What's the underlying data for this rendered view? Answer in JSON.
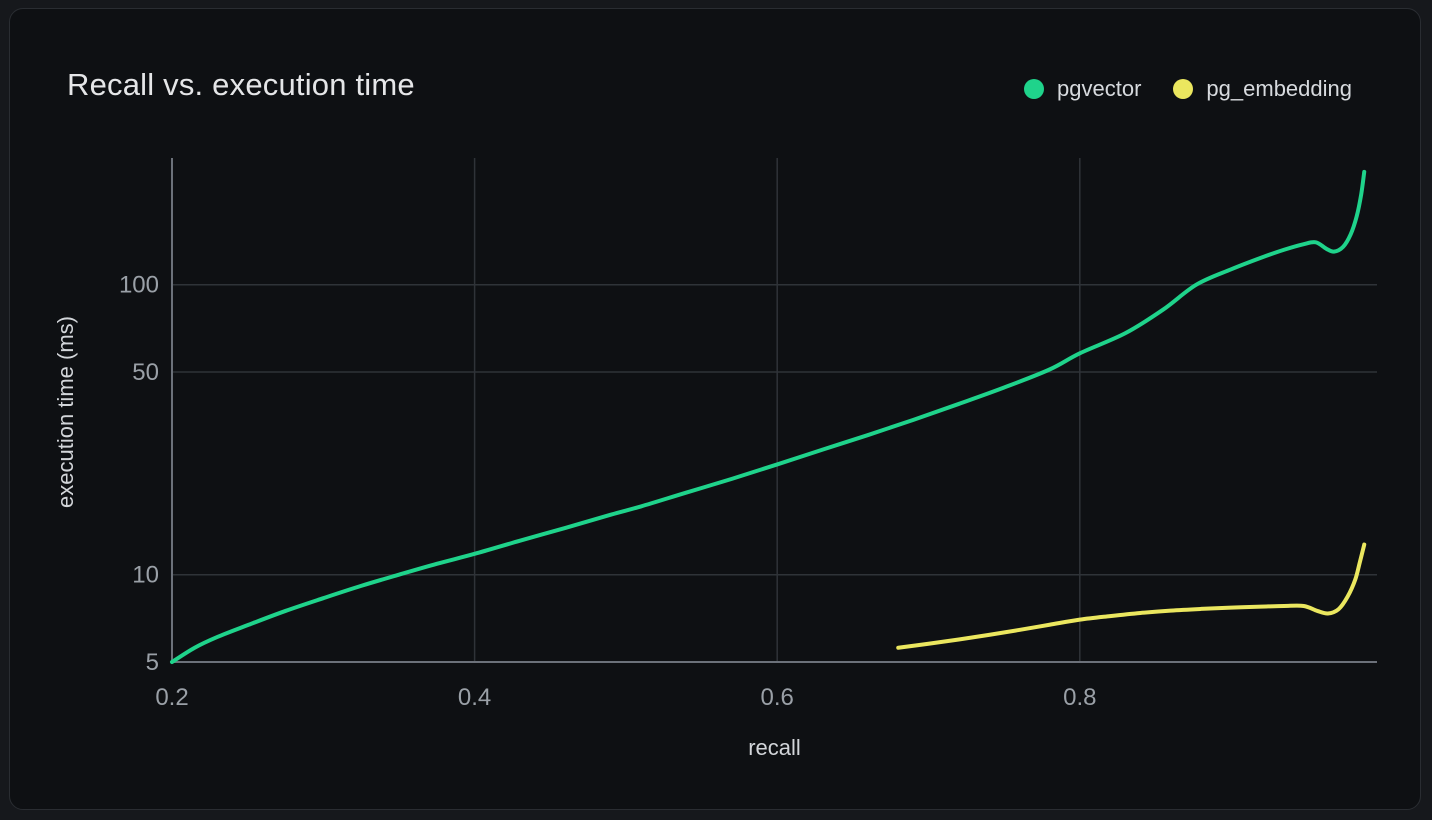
{
  "chart_data": {
    "type": "line",
    "title": "Recall vs. execution time",
    "xlabel": "recall",
    "ylabel": "execution time (ms)",
    "x_scale": "linear",
    "y_scale": "log",
    "xlim": [
      0.2,
      0.997
    ],
    "ylim": [
      5,
      300
    ],
    "x_ticks": [
      0.2,
      0.4,
      0.6,
      0.8
    ],
    "y_ticks": [
      5,
      10,
      50,
      100
    ],
    "grid": true,
    "legend_position": "top-right",
    "series": [
      {
        "name": "pgvector",
        "color": "#1fd38b",
        "points": [
          [
            0.2,
            5.0
          ],
          [
            0.215,
            5.6
          ],
          [
            0.23,
            6.1
          ],
          [
            0.25,
            6.7
          ],
          [
            0.275,
            7.5
          ],
          [
            0.3,
            8.3
          ],
          [
            0.325,
            9.15
          ],
          [
            0.35,
            10.0
          ],
          [
            0.375,
            10.9
          ],
          [
            0.4,
            11.8
          ],
          [
            0.43,
            13.1
          ],
          [
            0.46,
            14.5
          ],
          [
            0.49,
            16.1
          ],
          [
            0.51,
            17.2
          ],
          [
            0.54,
            19.2
          ],
          [
            0.57,
            21.4
          ],
          [
            0.6,
            24.0
          ],
          [
            0.63,
            27.0
          ],
          [
            0.66,
            30.3
          ],
          [
            0.69,
            34.2
          ],
          [
            0.72,
            38.8
          ],
          [
            0.75,
            44.2
          ],
          [
            0.78,
            51.0
          ],
          [
            0.8,
            58.0
          ],
          [
            0.83,
            68.0
          ],
          [
            0.855,
            82.0
          ],
          [
            0.877,
            100.0
          ],
          [
            0.9,
            113.0
          ],
          [
            0.92,
            124.0
          ],
          [
            0.935,
            132.0
          ],
          [
            0.948,
            138.0
          ],
          [
            0.956,
            140.0
          ],
          [
            0.963,
            133.0
          ],
          [
            0.968,
            130.0
          ],
          [
            0.974,
            135.0
          ],
          [
            0.979,
            149.0
          ],
          [
            0.983,
            172.0
          ],
          [
            0.986,
            205.0
          ],
          [
            0.988,
            245.0
          ]
        ]
      },
      {
        "name": "pg_embedding",
        "color": "#ebe75f",
        "points": [
          [
            0.68,
            5.6
          ],
          [
            0.7,
            5.78
          ],
          [
            0.72,
            5.98
          ],
          [
            0.74,
            6.2
          ],
          [
            0.76,
            6.45
          ],
          [
            0.78,
            6.72
          ],
          [
            0.8,
            7.0
          ],
          [
            0.82,
            7.2
          ],
          [
            0.84,
            7.38
          ],
          [
            0.86,
            7.52
          ],
          [
            0.88,
            7.62
          ],
          [
            0.9,
            7.7
          ],
          [
            0.92,
            7.76
          ],
          [
            0.935,
            7.8
          ],
          [
            0.948,
            7.8
          ],
          [
            0.957,
            7.5
          ],
          [
            0.964,
            7.35
          ],
          [
            0.971,
            7.6
          ],
          [
            0.977,
            8.4
          ],
          [
            0.982,
            9.6
          ],
          [
            0.985,
            11.0
          ],
          [
            0.988,
            12.7
          ]
        ]
      }
    ]
  }
}
